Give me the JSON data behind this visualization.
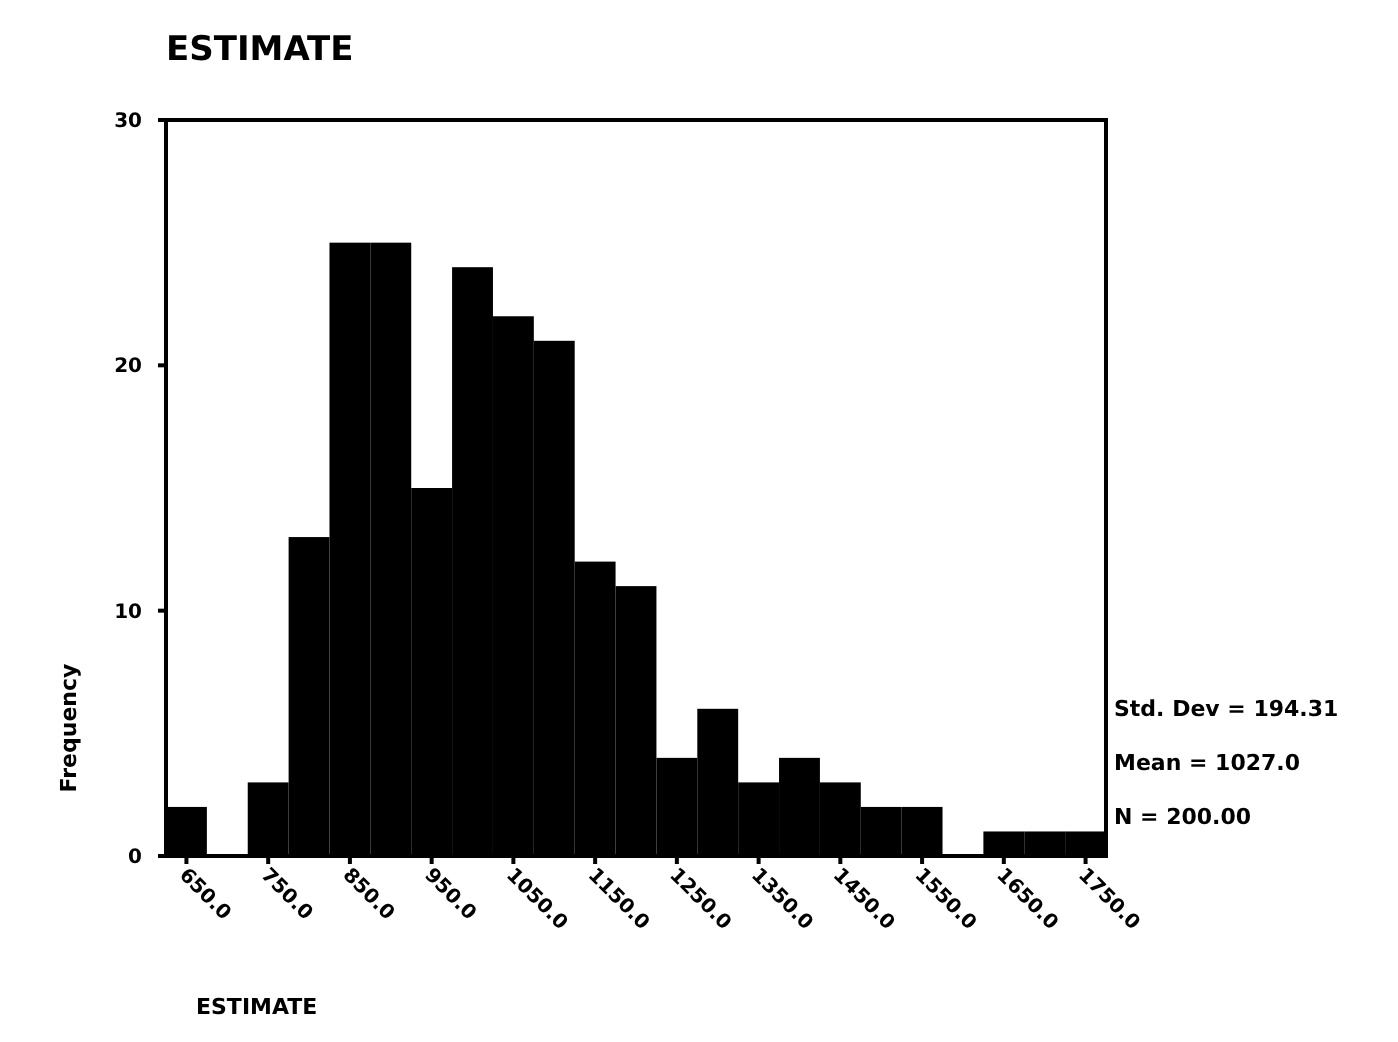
{
  "chart_data": {
    "type": "histogram",
    "title": "ESTIMATE",
    "xlabel": "ESTIMATE",
    "ylabel": "Frequency",
    "bins": [
      625,
      675,
      725,
      775,
      825,
      875,
      925,
      975,
      1025,
      1075,
      1125,
      1175,
      1225,
      1275,
      1325,
      1375,
      1425,
      1475,
      1525,
      1575,
      1625,
      1675,
      1725,
      1775
    ],
    "values": [
      2,
      0,
      3,
      13,
      25,
      25,
      15,
      24,
      22,
      21,
      12,
      11,
      4,
      6,
      3,
      4,
      3,
      2,
      2,
      0,
      1,
      1,
      1
    ],
    "color": "#000000",
    "xlim": [
      625,
      1775
    ],
    "ylim": [
      0,
      30
    ],
    "yticks": [
      0,
      10,
      20,
      30
    ],
    "xticks": [
      {
        "value": 650,
        "label": "650.0"
      },
      {
        "value": 750,
        "label": "750.0"
      },
      {
        "value": 850,
        "label": "850.0"
      },
      {
        "value": 950,
        "label": "950.0"
      },
      {
        "value": 1050,
        "label": "1050.0"
      },
      {
        "value": 1150,
        "label": "1150.0"
      },
      {
        "value": 1250,
        "label": "1250.0"
      },
      {
        "value": 1350,
        "label": "1350.0"
      },
      {
        "value": 1450,
        "label": "1450.0"
      },
      {
        "value": 1550,
        "label": "1550.0"
      },
      {
        "value": 1650,
        "label": "1650.0"
      },
      {
        "value": 1750,
        "label": "1750.0"
      }
    ],
    "annotations": [
      "Std. Dev = 194.31",
      "Mean = 1027.0",
      "N = 200.00"
    ],
    "grid": false
  }
}
